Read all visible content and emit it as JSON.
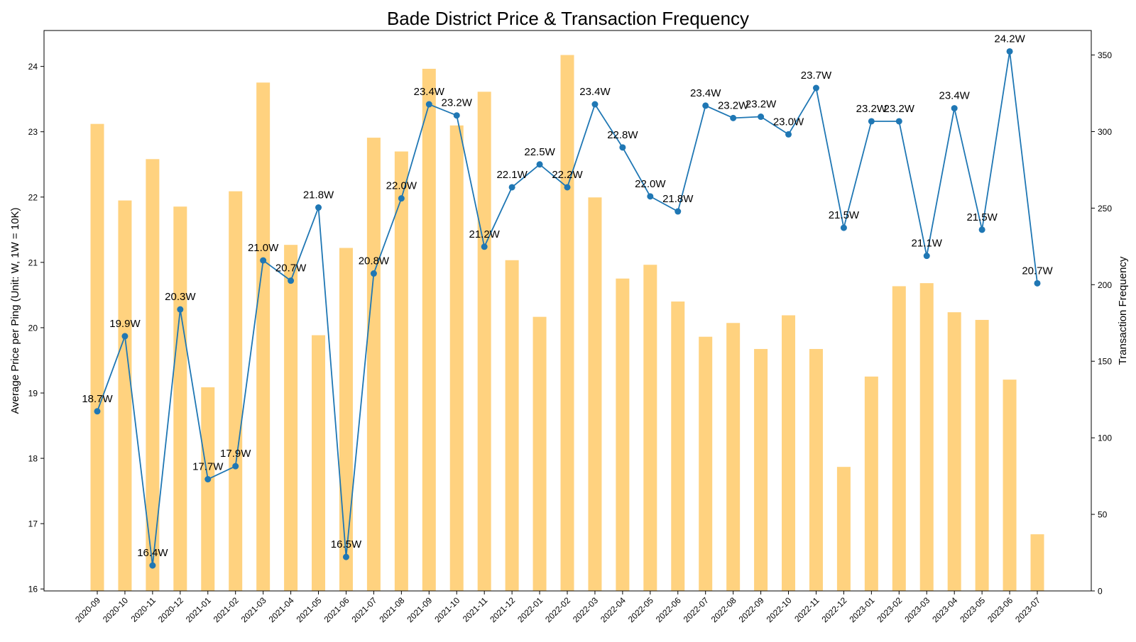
{
  "chart_data": {
    "type": "bar+line",
    "title": "Bade District Price & Transaction Frequency",
    "categories": [
      "2020-09",
      "2020-10",
      "2020-11",
      "2020-12",
      "2021-01",
      "2021-02",
      "2021-03",
      "2021-04",
      "2021-05",
      "2021-06",
      "2021-07",
      "2021-08",
      "2021-09",
      "2021-10",
      "2021-11",
      "2021-12",
      "2022-01",
      "2022-02",
      "2022-03",
      "2022-04",
      "2022-05",
      "2022-06",
      "2022-07",
      "2022-08",
      "2022-09",
      "2022-10",
      "2022-11",
      "2022-12",
      "2023-01",
      "2023-02",
      "2023-03",
      "2023-04",
      "2023-05",
      "2023-06",
      "2023-07"
    ],
    "series": [
      {
        "axis": "left",
        "type": "line",
        "color": "#1f77b4",
        "values": [
          18.72,
          19.87,
          16.36,
          20.28,
          17.68,
          17.88,
          21.03,
          20.72,
          21.84,
          16.49,
          20.83,
          21.98,
          23.42,
          23.25,
          21.24,
          22.15,
          22.5,
          22.15,
          23.42,
          22.76,
          22.01,
          21.78,
          23.4,
          23.21,
          23.23,
          22.96,
          23.67,
          21.53,
          23.16,
          23.16,
          21.1,
          23.36,
          21.5,
          24.23,
          20.68
        ],
        "labels": [
          "18.7W",
          "19.9W",
          "16.4W",
          "20.3W",
          "17.7W",
          "17.9W",
          "21.0W",
          "20.7W",
          "21.8W",
          "16.5W",
          "20.8W",
          "22.0W",
          "23.4W",
          "23.2W",
          "21.2W",
          "22.1W",
          "22.5W",
          "22.2W",
          "23.4W",
          "22.8W",
          "22.0W",
          "21.8W",
          "23.4W",
          "23.2W",
          "23.2W",
          "23.0W",
          "23.7W",
          "21.5W",
          "23.2W",
          "23.2W",
          "21.1W",
          "23.4W",
          "21.5W",
          "24.2W",
          "20.7W"
        ]
      },
      {
        "axis": "right",
        "type": "bar",
        "color": "#ffa500",
        "opacity": 0.5,
        "values": [
          305,
          255,
          282,
          251,
          133,
          261,
          332,
          226,
          167,
          224,
          296,
          287,
          341,
          304,
          326,
          216,
          179,
          350,
          257,
          204,
          213,
          189,
          166,
          175,
          158,
          180,
          158,
          81,
          140,
          199,
          201,
          182,
          177,
          138,
          37
        ]
      }
    ],
    "ylabel_left": "Average Price per Ping (Unit: W, 1W = 10K)",
    "ylabel_right": "Transaction Frequency",
    "ylim_left": [
      15.97,
      24.55
    ],
    "ylim_right": [
      0,
      366
    ],
    "yticks_left": [
      16,
      17,
      18,
      19,
      20,
      21,
      22,
      23,
      24
    ],
    "yticks_right": [
      0,
      50,
      100,
      150,
      200,
      250,
      300,
      350
    ],
    "grid": false,
    "legend": "none"
  }
}
